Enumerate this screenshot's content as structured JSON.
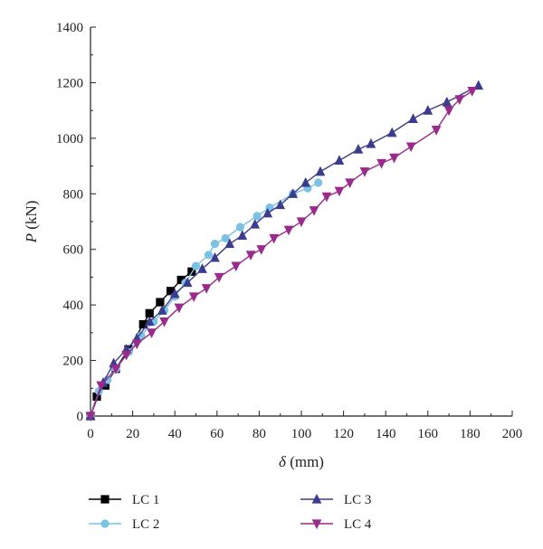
{
  "chart_data": {
    "type": "line",
    "xlabel": {
      "symbol": "δ",
      "unit": " (mm)"
    },
    "ylabel": {
      "symbol": "P",
      "unit": " (kN)"
    },
    "xlim": [
      0,
      200
    ],
    "ylim": [
      0,
      1400
    ],
    "xticks": [
      0,
      20,
      40,
      60,
      80,
      100,
      120,
      140,
      160,
      180,
      200
    ],
    "yticks": [
      0,
      200,
      400,
      600,
      800,
      1000,
      1200,
      1400
    ],
    "grid": false,
    "legend_position": "bottom",
    "series": [
      {
        "name": "LC 1",
        "color": "#000000",
        "marker": "square",
        "x": [
          0,
          3,
          7,
          12,
          18,
          25,
          28,
          33,
          38,
          43,
          48
        ],
        "y": [
          0,
          70,
          110,
          170,
          240,
          330,
          370,
          410,
          450,
          490,
          520
        ]
      },
      {
        "name": "LC 2",
        "color": "#7cc2e3",
        "marker": "circle",
        "x": [
          0,
          4,
          8,
          12,
          18,
          24,
          30,
          35,
          40,
          45,
          50,
          56,
          59,
          64,
          71,
          79,
          85,
          96,
          103,
          108
        ],
        "y": [
          0,
          90,
          130,
          170,
          230,
          290,
          340,
          380,
          430,
          480,
          540,
          580,
          620,
          640,
          680,
          720,
          750,
          800,
          820,
          840
        ],
        "dashed": false
      },
      {
        "name": "LC 3",
        "color": "#3c3c8f",
        "marker": "triangle-up",
        "x": [
          0,
          6,
          11,
          17,
          22,
          28,
          34,
          40,
          46,
          53,
          59,
          66,
          72,
          78,
          84,
          90,
          96,
          102,
          109,
          118,
          127,
          133,
          143,
          153,
          160,
          169,
          184
        ],
        "y": [
          0,
          120,
          190,
          240,
          280,
          340,
          380,
          440,
          480,
          530,
          570,
          620,
          650,
          690,
          730,
          760,
          800,
          840,
          880,
          920,
          960,
          980,
          1020,
          1070,
          1100,
          1130,
          1190
        ]
      },
      {
        "name": "LC 4",
        "color": "#9a2a8c",
        "marker": "triangle-down",
        "x": [
          0,
          5,
          12,
          17,
          22,
          29,
          35,
          42,
          49,
          55,
          61,
          69,
          76,
          81,
          87,
          94,
          100,
          106,
          112,
          118,
          123,
          130,
          138,
          144,
          152,
          164,
          170,
          175,
          181
        ],
        "y": [
          0,
          110,
          170,
          220,
          260,
          300,
          340,
          390,
          430,
          460,
          500,
          540,
          580,
          600,
          640,
          670,
          700,
          740,
          790,
          810,
          840,
          880,
          910,
          930,
          970,
          1030,
          1100,
          1140,
          1170
        ]
      }
    ]
  }
}
